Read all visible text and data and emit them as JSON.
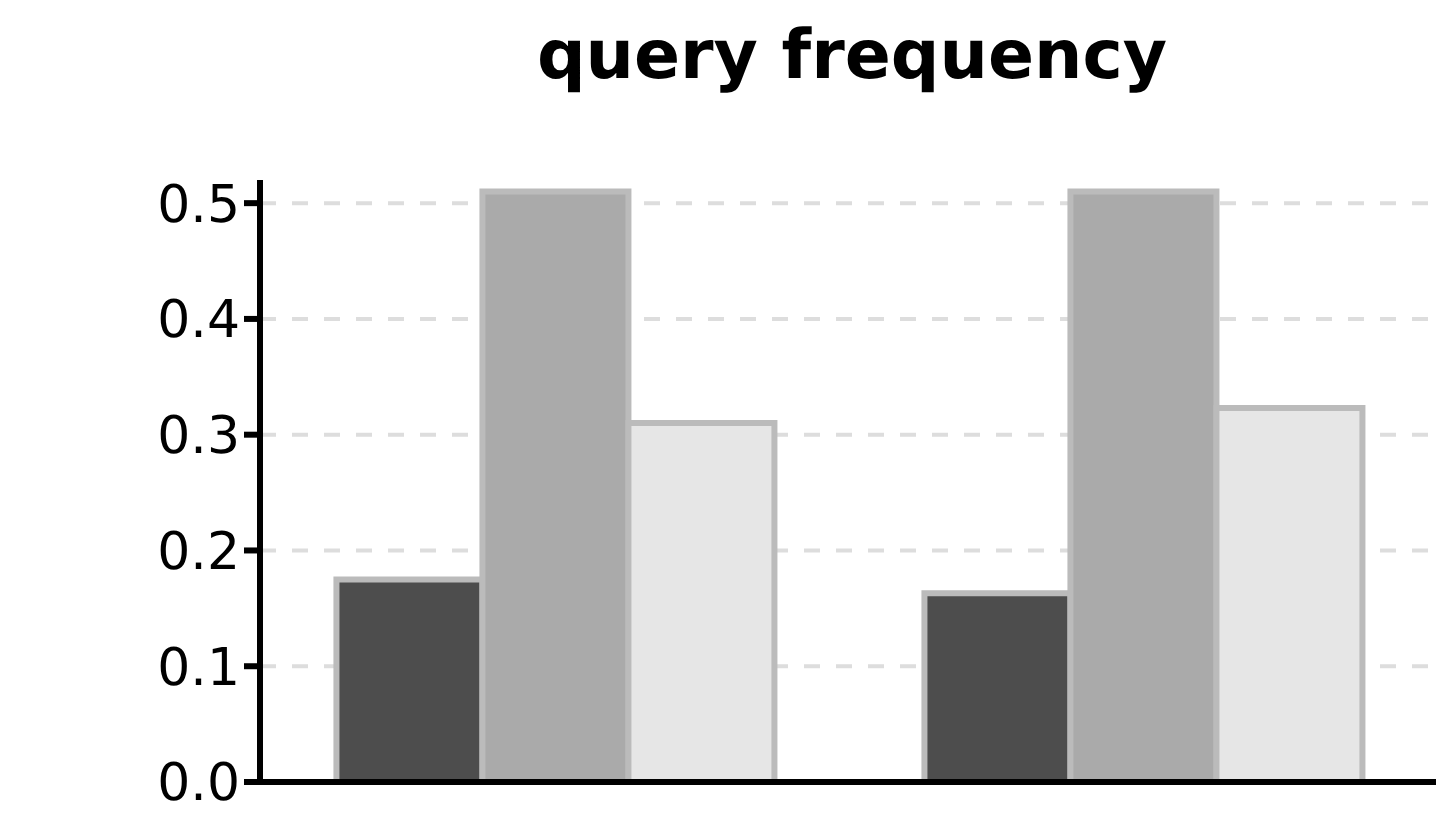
{
  "chart_data": {
    "type": "bar",
    "title": "query frequency",
    "categories": [
      null,
      null
    ],
    "series": [
      {
        "color": "#4d4d4d",
        "values": [
          0.175,
          0.163
        ]
      },
      {
        "color": "#aaaaaa",
        "values": [
          0.51,
          0.51
        ]
      },
      {
        "color": "#e6e6e6",
        "values": [
          0.31,
          0.323
        ]
      }
    ],
    "ylim": [
      0,
      0.52
    ],
    "yticks": [
      {
        "value": 0,
        "label": "0.0"
      },
      {
        "value": 0.1,
        "label": "0.1"
      },
      {
        "value": 0.2,
        "label": "0.2"
      },
      {
        "value": 0.3,
        "label": "0.3"
      },
      {
        "value": 0.4,
        "label": "0.4"
      },
      {
        "value": 0.5,
        "label": "0.5"
      }
    ],
    "grid": "y",
    "legend": false
  }
}
